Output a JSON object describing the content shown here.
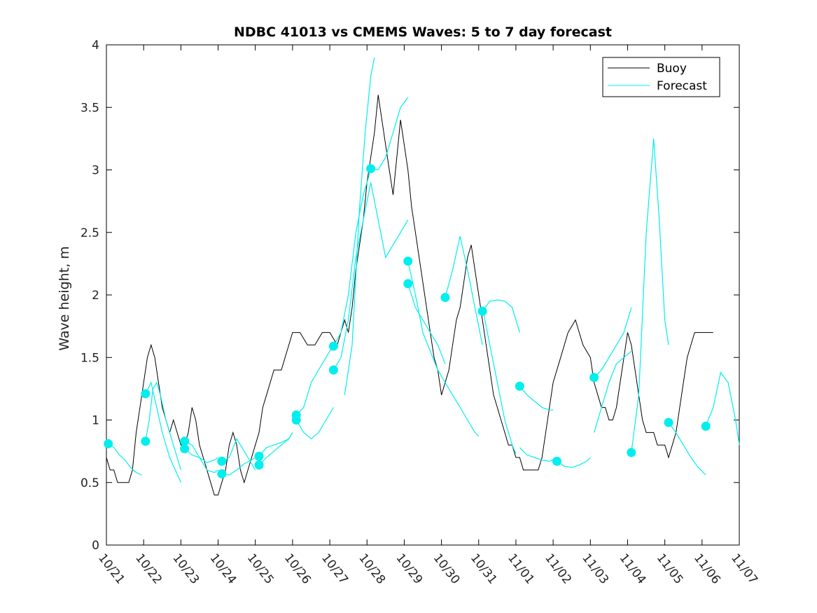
{
  "chart_data": {
    "type": "line",
    "title": "NDBC 41013 vs CMEMS Waves: 5 to 7 day forecast",
    "xlabel": "",
    "ylabel": "Wave height, m",
    "xlim": [
      0,
      17
    ],
    "ylim": [
      0,
      4
    ],
    "grid": false,
    "legend_position": "top-right",
    "legend": [
      "Buoy",
      "Forecast"
    ],
    "colors": {
      "buoy": "#000000",
      "forecast": "#00eeee"
    },
    "x_ticks": [
      {
        "x": 0,
        "label": "10/21"
      },
      {
        "x": 1,
        "label": "10/22"
      },
      {
        "x": 2,
        "label": "10/23"
      },
      {
        "x": 3,
        "label": "10/24"
      },
      {
        "x": 4,
        "label": "10/25"
      },
      {
        "x": 5,
        "label": "10/26"
      },
      {
        "x": 6,
        "label": "10/27"
      },
      {
        "x": 7,
        "label": "10/28"
      },
      {
        "x": 8,
        "label": "10/29"
      },
      {
        "x": 9,
        "label": "10/30"
      },
      {
        "x": 10,
        "label": "10/31"
      },
      {
        "x": 11,
        "label": "11/01"
      },
      {
        "x": 12,
        "label": "11/02"
      },
      {
        "x": 13,
        "label": "11/03"
      },
      {
        "x": 14,
        "label": "11/04"
      },
      {
        "x": 15,
        "label": "11/05"
      },
      {
        "x": 16,
        "label": "11/06"
      },
      {
        "x": 17,
        "label": "11/07"
      }
    ],
    "y_ticks": [
      {
        "y": 0,
        "label": "0"
      },
      {
        "y": 0.5,
        "label": "0.5"
      },
      {
        "y": 1,
        "label": "1"
      },
      {
        "y": 1.5,
        "label": "1.5"
      },
      {
        "y": 2,
        "label": "2"
      },
      {
        "y": 2.5,
        "label": "2.5"
      },
      {
        "y": 3,
        "label": "3"
      },
      {
        "y": 3.5,
        "label": "3.5"
      },
      {
        "y": 4,
        "label": "4"
      }
    ],
    "series": [
      {
        "name": "Buoy",
        "x": [
          0,
          0.1,
          0.2,
          0.3,
          0.4,
          0.5,
          0.6,
          0.7,
          0.8,
          0.9,
          1.0,
          1.1,
          1.2,
          1.3,
          1.4,
          1.5,
          1.6,
          1.7,
          1.8,
          1.9,
          2.0,
          2.1,
          2.2,
          2.3,
          2.4,
          2.5,
          2.6,
          2.7,
          2.8,
          2.9,
          3.0,
          3.1,
          3.2,
          3.3,
          3.4,
          3.5,
          3.6,
          3.7,
          3.8,
          3.9,
          4.0,
          4.1,
          4.2,
          4.3,
          4.4,
          4.5,
          4.6,
          4.7,
          4.8,
          4.9,
          5.0,
          5.2,
          5.4,
          5.6,
          5.8,
          6.0,
          6.2,
          6.4,
          6.5,
          6.6,
          6.7,
          6.8,
          6.9,
          7.0,
          7.1,
          7.2,
          7.3,
          7.4,
          7.5,
          7.6,
          7.7,
          7.8,
          7.9,
          8.0,
          8.1,
          8.2,
          8.3,
          8.4,
          8.5,
          8.6,
          8.7,
          8.8,
          8.9,
          9.0,
          9.1,
          9.2,
          9.3,
          9.4,
          9.5,
          9.6,
          9.7,
          9.8,
          9.9,
          10.0,
          10.1,
          10.2,
          10.3,
          10.4,
          10.5,
          10.6,
          10.7,
          10.8,
          10.9,
          11.0,
          11.1,
          11.2,
          11.3,
          11.4,
          11.5,
          11.6,
          11.7,
          11.8,
          11.9,
          12.0,
          12.2,
          12.4,
          12.6,
          12.8,
          13.0,
          13.1,
          13.2,
          13.3,
          13.4,
          13.5,
          13.6,
          13.7,
          13.8,
          13.9,
          14.0,
          14.1,
          14.2,
          14.3,
          14.4,
          14.5,
          14.6,
          14.7,
          14.8,
          14.9,
          15.0,
          15.1,
          15.2,
          15.3,
          15.4,
          15.5,
          15.6,
          15.7,
          15.8,
          15.9,
          16.0,
          16.1,
          16.2,
          16.3
        ],
        "values": [
          0.7,
          0.6,
          0.6,
          0.5,
          0.5,
          0.5,
          0.5,
          0.6,
          0.9,
          1.1,
          1.3,
          1.5,
          1.6,
          1.5,
          1.3,
          1.1,
          1.0,
          0.9,
          1.0,
          0.9,
          0.8,
          0.8,
          0.9,
          1.1,
          1.0,
          0.8,
          0.7,
          0.6,
          0.5,
          0.4,
          0.4,
          0.5,
          0.6,
          0.8,
          0.9,
          0.8,
          0.6,
          0.5,
          0.6,
          0.7,
          0.8,
          0.9,
          1.1,
          1.2,
          1.3,
          1.4,
          1.4,
          1.4,
          1.5,
          1.6,
          1.7,
          1.7,
          1.6,
          1.6,
          1.7,
          1.7,
          1.6,
          1.8,
          1.7,
          1.9,
          2.2,
          2.4,
          2.6,
          2.9,
          3.1,
          3.3,
          3.6,
          3.4,
          3.2,
          3.0,
          2.8,
          3.1,
          3.4,
          3.2,
          3.0,
          2.7,
          2.5,
          2.3,
          2.1,
          1.9,
          1.7,
          1.5,
          1.4,
          1.2,
          1.3,
          1.4,
          1.6,
          1.8,
          1.9,
          2.1,
          2.3,
          2.4,
          2.2,
          2.0,
          1.8,
          1.6,
          1.4,
          1.2,
          1.1,
          1.0,
          0.9,
          0.8,
          0.8,
          0.7,
          0.7,
          0.6,
          0.6,
          0.6,
          0.6,
          0.6,
          0.7,
          0.9,
          1.1,
          1.3,
          1.5,
          1.7,
          1.8,
          1.6,
          1.5,
          1.3,
          1.2,
          1.1,
          1.1,
          1.0,
          1.0,
          1.1,
          1.3,
          1.5,
          1.7,
          1.6,
          1.4,
          1.2,
          1.0,
          0.9,
          0.9,
          0.9,
          0.8,
          0.8,
          0.8,
          0.7,
          0.8,
          0.9,
          1.1,
          1.3,
          1.5,
          1.6,
          1.7,
          1.7,
          1.7,
          1.7,
          1.7,
          1.7
        ]
      },
      {
        "name": "Forecast",
        "segments": [
          {
            "x": [
              0.05,
              0.2,
              0.35,
              0.5,
              0.65,
              0.8,
              0.95
            ],
            "values": [
              0.81,
              0.78,
              0.72,
              0.68,
              0.62,
              0.58,
              0.56
            ]
          },
          {
            "x": [
              1.05,
              1.15,
              1.25,
              1.35,
              1.45,
              1.6,
              1.8,
              2.0
            ],
            "values": [
              0.83,
              1.0,
              1.25,
              1.3,
              1.2,
              1.0,
              0.8,
              0.6
            ]
          },
          {
            "x": [
              1.05,
              1.2,
              1.35,
              1.5,
              1.7,
              1.85,
              2.0
            ],
            "values": [
              1.21,
              1.3,
              1.1,
              0.9,
              0.7,
              0.6,
              0.5
            ]
          },
          {
            "x": [
              2.1,
              2.3,
              2.5,
              2.7,
              2.9,
              3.0
            ],
            "values": [
              0.83,
              0.8,
              0.7,
              0.6,
              0.58,
              0.6
            ]
          },
          {
            "x": [
              2.1,
              2.3,
              2.5,
              2.7,
              2.9,
              3.0
            ],
            "values": [
              0.77,
              0.72,
              0.7,
              0.66,
              0.68,
              0.7
            ]
          },
          {
            "x": [
              3.1,
              3.3,
              3.5,
              3.7,
              3.9,
              4.0
            ],
            "values": [
              0.67,
              0.7,
              0.85,
              0.75,
              0.65,
              0.6
            ]
          },
          {
            "x": [
              3.1,
              3.3,
              3.5,
              3.7,
              3.9,
              4.0
            ],
            "values": [
              0.57,
              0.56,
              0.6,
              0.65,
              0.68,
              0.7
            ]
          },
          {
            "x": [
              4.1,
              4.3,
              4.5,
              4.7,
              4.9,
              5.0
            ],
            "values": [
              0.71,
              0.78,
              0.8,
              0.82,
              0.85,
              0.9
            ]
          },
          {
            "x": [
              4.1,
              4.3,
              4.5,
              4.7,
              4.9,
              5.0
            ],
            "values": [
              0.64,
              0.7,
              0.75,
              0.8,
              0.85,
              0.9
            ]
          },
          {
            "x": [
              5.1,
              5.3,
              5.5,
              5.7,
              5.9,
              6.1
            ],
            "values": [
              1.04,
              1.1,
              1.3,
              1.4,
              1.5,
              1.6
            ]
          },
          {
            "x": [
              5.1,
              5.3,
              5.5,
              5.7,
              5.9,
              6.1
            ],
            "values": [
              1.0,
              0.9,
              0.85,
              0.9,
              1.0,
              1.1
            ]
          },
          {
            "x": [
              6.1,
              6.3,
              6.5,
              6.7,
              6.9,
              7.1
            ],
            "values": [
              1.59,
              1.7,
              2.0,
              2.5,
              2.8,
              3.0
            ]
          },
          {
            "x": [
              6.1,
              6.3,
              6.5,
              6.7,
              6.9,
              7.1
            ],
            "values": [
              1.4,
              1.5,
              1.8,
              2.3,
              2.6,
              2.9
            ]
          },
          {
            "x": [
              6.4,
              6.6,
              6.8,
              6.95,
              7.1,
              7.2
            ],
            "values": [
              1.2,
              1.6,
              2.7,
              3.3,
              3.75,
              3.9
            ]
          },
          {
            "x": [
              7.1,
              7.3,
              7.5,
              7.7,
              7.9,
              8.1
            ],
            "values": [
              3.01,
              3.0,
              3.1,
              3.3,
              3.5,
              3.58
            ]
          },
          {
            "x": [
              7.1,
              7.3,
              7.5,
              7.7,
              7.9,
              8.1
            ],
            "values": [
              2.9,
              2.6,
              2.3,
              2.4,
              2.5,
              2.6
            ]
          },
          {
            "x": [
              8.1,
              8.3,
              8.5,
              8.7,
              8.9,
              9.1
            ],
            "values": [
              2.27,
              2.0,
              1.7,
              1.55,
              1.4,
              1.3
            ]
          },
          {
            "x": [
              8.1,
              8.3,
              8.5,
              8.7,
              8.9,
              9.1
            ],
            "values": [
              2.09,
              1.9,
              1.8,
              1.7,
              1.6,
              1.45
            ]
          },
          {
            "x": [
              9.1,
              9.3,
              9.5,
              9.7,
              9.9,
              10.1
            ],
            "values": [
              1.98,
              2.2,
              2.47,
              2.2,
              1.9,
              1.6
            ]
          },
          {
            "x": [
              9.1,
              9.3,
              9.5,
              9.7,
              9.9,
              10.0
            ],
            "values": [
              1.3,
              1.2,
              1.1,
              1.0,
              0.9,
              0.87
            ]
          },
          {
            "x": [
              10.1,
              10.3,
              10.5,
              10.7,
              10.9,
              11.1
            ],
            "values": [
              1.87,
              1.95,
              1.96,
              1.95,
              1.9,
              1.7
            ]
          },
          {
            "x": [
              10.1,
              10.3,
              10.5,
              10.7,
              10.9,
              11.0
            ],
            "values": [
              1.9,
              1.6,
              1.3,
              1.0,
              0.8,
              0.73
            ]
          },
          {
            "x": [
              11.1,
              11.3,
              11.5,
              11.7,
              11.9,
              12.0
            ],
            "values": [
              1.27,
              1.2,
              1.15,
              1.1,
              1.08,
              1.08
            ]
          },
          {
            "x": [
              11.1,
              11.3,
              11.5,
              11.7,
              11.9,
              12.0
            ],
            "values": [
              0.78,
              0.72,
              0.7,
              0.68,
              0.67,
              0.68
            ]
          },
          {
            "x": [
              12.1,
              12.3,
              12.5,
              12.7,
              12.9,
              13.0
            ],
            "values": [
              0.67,
              0.63,
              0.62,
              0.64,
              0.67,
              0.7
            ]
          },
          {
            "x": [
              13.1,
              13.3,
              13.5,
              13.7,
              13.9,
              14.1
            ],
            "values": [
              1.34,
              1.4,
              1.5,
              1.6,
              1.7,
              1.9
            ]
          },
          {
            "x": [
              13.1,
              13.3,
              13.5,
              13.7,
              13.9,
              14.1
            ],
            "values": [
              0.9,
              1.1,
              1.3,
              1.45,
              1.5,
              1.55
            ]
          },
          {
            "x": [
              14.1,
              14.3,
              14.5,
              14.7,
              14.85,
              15.0,
              15.1
            ],
            "values": [
              0.74,
              1.2,
              2.5,
              3.25,
              2.6,
              1.8,
              1.6
            ]
          },
          {
            "x": [
              15.1,
              15.3,
              15.5,
              15.7,
              15.9,
              16.1
            ],
            "values": [
              0.98,
              0.9,
              0.8,
              0.7,
              0.62,
              0.56
            ]
          },
          {
            "x": [
              16.1,
              16.3,
              16.5,
              16.7,
              16.9,
              17.0
            ],
            "values": [
              0.95,
              1.1,
              1.38,
              1.3,
              1.0,
              0.8
            ]
          }
        ],
        "markers": {
          "x": [
            0.05,
            1.05,
            1.05,
            2.1,
            2.1,
            3.1,
            3.1,
            4.1,
            4.1,
            5.1,
            5.1,
            6.1,
            6.1,
            7.1,
            8.1,
            8.1,
            9.1,
            10.1,
            11.1,
            12.1,
            13.1,
            14.1,
            15.1,
            16.1
          ],
          "values": [
            0.81,
            0.83,
            1.21,
            0.83,
            0.77,
            0.67,
            0.57,
            0.71,
            0.64,
            1.04,
            1.0,
            1.59,
            1.4,
            3.01,
            2.27,
            2.09,
            1.98,
            1.87,
            1.27,
            0.67,
            1.34,
            0.74,
            0.98,
            0.95
          ]
        }
      }
    ]
  }
}
